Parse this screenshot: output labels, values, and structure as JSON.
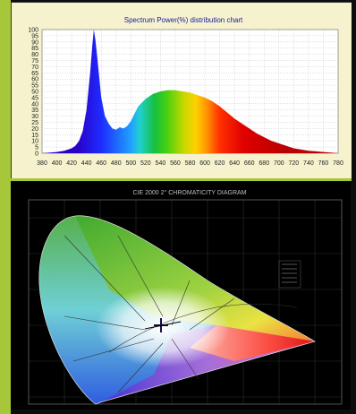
{
  "chart_data": [
    {
      "type": "area",
      "title": "Spectrum Power(%) distribution chart",
      "xlabel": "",
      "ylabel": "",
      "xlim": [
        380,
        780
      ],
      "ylim": [
        0,
        100
      ],
      "xticks": [
        380,
        400,
        420,
        440,
        460,
        480,
        500,
        520,
        540,
        560,
        580,
        600,
        620,
        640,
        660,
        680,
        700,
        720,
        740,
        760,
        780
      ],
      "yticks": [
        0,
        5,
        10,
        15,
        20,
        25,
        30,
        35,
        40,
        45,
        50,
        55,
        60,
        65,
        70,
        75,
        80,
        85,
        90,
        95,
        100
      ],
      "grid": true,
      "series": [
        {
          "x": [
            380,
            400,
            410,
            420,
            425,
            430,
            435,
            440,
            445,
            448,
            450,
            452,
            455,
            460,
            465,
            470,
            475,
            480,
            485,
            490,
            495,
            500,
            505,
            510,
            520,
            530,
            540,
            550,
            560,
            570,
            580,
            590,
            600,
            610,
            620,
            630,
            640,
            650,
            660,
            670,
            680,
            690,
            700,
            710,
            720,
            730,
            740,
            750,
            760,
            770,
            780
          ],
          "values": [
            0,
            1,
            2,
            4,
            6,
            10,
            18,
            35,
            65,
            88,
            100,
            92,
            75,
            45,
            30,
            24,
            20,
            19,
            21,
            20,
            22,
            26,
            32,
            38,
            44,
            48,
            50,
            51,
            51,
            50,
            49,
            47,
            45,
            42,
            38,
            33,
            28,
            24,
            20,
            16,
            13,
            10,
            8,
            6,
            4,
            3,
            2,
            1.5,
            1,
            0.5,
            0
          ]
        }
      ],
      "colors": [
        "#2a00c8",
        "#1e2cff",
        "#1fa0ff",
        "#21d0d0",
        "#15c040",
        "#45d010",
        "#c8d800",
        "#ffd000",
        "#ff8c00",
        "#ff3000",
        "#e00000",
        "#b80000"
      ]
    },
    {
      "type": "diagram",
      "title": "CIE 2000 2° CHROMATICITY DIAGRAM"
    }
  ]
}
